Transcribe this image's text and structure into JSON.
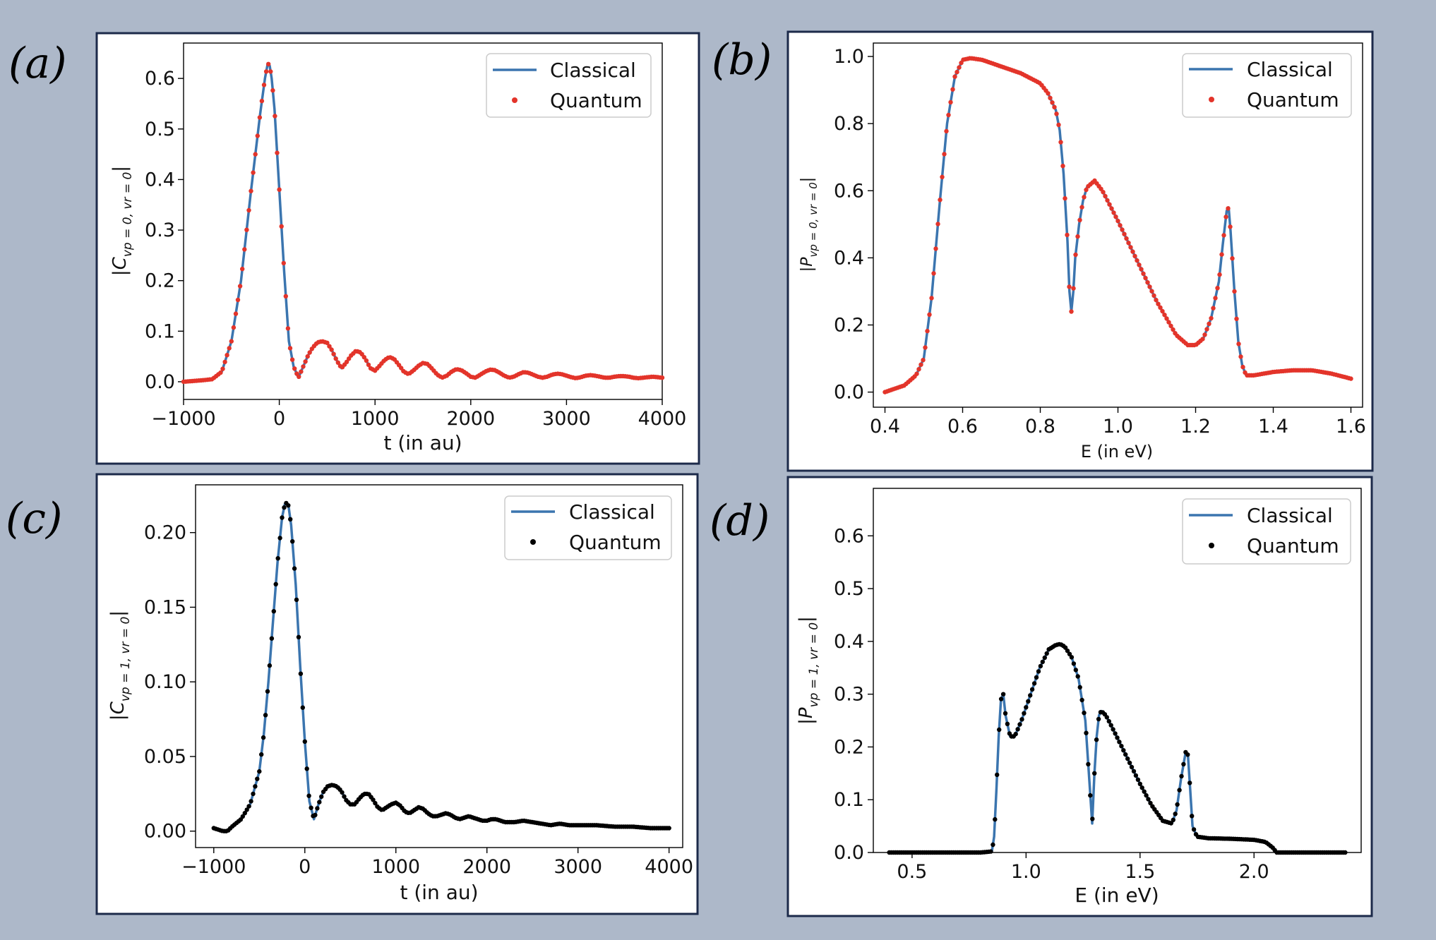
{
  "colors": {
    "background": "#adb8c9",
    "frame": "#1c2a4a",
    "classical": "#3b75af",
    "quantum_red": "#e3342a",
    "quantum_black": "#000000"
  },
  "chart_data": [
    {
      "id": "a",
      "type": "line",
      "panel_label": "(a)",
      "xlabel": "t (in au)",
      "ylabel": "|C_{v_p=0, v_r=0}|",
      "ylabel_main": "|C",
      "ylabel_sub": "vp = 0, vr = 0",
      "ylabel_end": "|",
      "xlim": [
        -1000,
        4000
      ],
      "ylim": [
        -0.035,
        0.67
      ],
      "xticks": [
        -1000,
        0,
        1000,
        2000,
        3000,
        4000
      ],
      "xtick_labels": [
        "−1000",
        "0",
        "1000",
        "2000",
        "3000",
        "4000"
      ],
      "yticks": [
        0.0,
        0.1,
        0.2,
        0.3,
        0.4,
        0.5,
        0.6
      ],
      "ytick_labels": [
        "0.0",
        "0.1",
        "0.2",
        "0.3",
        "0.4",
        "0.5",
        "0.6"
      ],
      "legend": {
        "classical": "Classical",
        "quantum": "Quantum",
        "position": "top-right"
      },
      "quantum_color": "#e3342a",
      "series": [
        {
          "name": "Classical",
          "x": [
            -1000,
            -800,
            -700,
            -600,
            -500,
            -400,
            -300,
            -200,
            -150,
            -120,
            -100,
            -80,
            -50,
            0,
            50,
            100,
            150,
            200,
            250,
            300,
            350,
            400,
            450,
            500,
            550,
            600,
            650,
            700,
            750,
            800,
            850,
            900,
            950,
            1000,
            1050,
            1100,
            1150,
            1200,
            1250,
            1300,
            1350,
            1400,
            1450,
            1500,
            1550,
            1600,
            1650,
            1700,
            1750,
            1800,
            1850,
            1900,
            1950,
            2000,
            2050,
            2100,
            2150,
            2200,
            2250,
            2300,
            2350,
            2400,
            2450,
            2500,
            2550,
            2600,
            2650,
            2700,
            2750,
            2800,
            2850,
            2900,
            2950,
            3000,
            3050,
            3100,
            3150,
            3200,
            3250,
            3300,
            3350,
            3400,
            3450,
            3500,
            3550,
            3600,
            3650,
            3700,
            3750,
            3800,
            3850,
            3900,
            3950,
            4000
          ],
          "y": [
            0.0,
            0.003,
            0.005,
            0.02,
            0.08,
            0.2,
            0.37,
            0.53,
            0.6,
            0.63,
            0.625,
            0.6,
            0.54,
            0.38,
            0.22,
            0.08,
            0.03,
            0.008,
            0.03,
            0.052,
            0.068,
            0.078,
            0.08,
            0.077,
            0.062,
            0.042,
            0.027,
            0.038,
            0.052,
            0.061,
            0.058,
            0.045,
            0.027,
            0.022,
            0.032,
            0.043,
            0.049,
            0.045,
            0.033,
            0.02,
            0.015,
            0.022,
            0.031,
            0.037,
            0.035,
            0.025,
            0.014,
            0.008,
            0.012,
            0.02,
            0.025,
            0.023,
            0.017,
            0.01,
            0.008,
            0.014,
            0.02,
            0.024,
            0.023,
            0.018,
            0.012,
            0.008,
            0.01,
            0.015,
            0.019,
            0.018,
            0.014,
            0.01,
            0.008,
            0.01,
            0.014,
            0.016,
            0.015,
            0.012,
            0.009,
            0.007,
            0.009,
            0.012,
            0.013,
            0.012,
            0.01,
            0.008,
            0.008,
            0.01,
            0.011,
            0.011,
            0.01,
            0.008,
            0.007,
            0.008,
            0.009,
            0.01,
            0.009,
            0.008
          ]
        },
        {
          "name": "Quantum"
        }
      ]
    },
    {
      "id": "b",
      "type": "line",
      "panel_label": "(b)",
      "xlabel": "E (in eV)",
      "ylabel": "|P_{v_p=0, v_r=0}|",
      "ylabel_main": "|P",
      "ylabel_sub": "vp = 0, vr = 0",
      "ylabel_end": "|",
      "xlim": [
        0.37,
        1.63
      ],
      "ylim": [
        -0.045,
        1.04
      ],
      "xticks": [
        0.4,
        0.6,
        0.8,
        1.0,
        1.2,
        1.4,
        1.6
      ],
      "xtick_labels": [
        "0.4",
        "0.6",
        "0.8",
        "1.0",
        "1.2",
        "1.4",
        "1.6"
      ],
      "yticks": [
        0.0,
        0.2,
        0.4,
        0.6,
        0.8,
        1.0
      ],
      "ytick_labels": [
        "0.0",
        "0.2",
        "0.4",
        "0.6",
        "0.8",
        "1.0"
      ],
      "legend": {
        "classical": "Classical",
        "quantum": "Quantum",
        "position": "top-right"
      },
      "quantum_color": "#e3342a",
      "series": [
        {
          "name": "Classical",
          "x": [
            0.4,
            0.45,
            0.48,
            0.5,
            0.52,
            0.54,
            0.56,
            0.58,
            0.6,
            0.62,
            0.65,
            0.7,
            0.75,
            0.8,
            0.82,
            0.84,
            0.85,
            0.86,
            0.87,
            0.875,
            0.88,
            0.885,
            0.89,
            0.9,
            0.91,
            0.92,
            0.94,
            0.96,
            1.0,
            1.05,
            1.1,
            1.15,
            1.18,
            1.2,
            1.22,
            1.24,
            1.26,
            1.27,
            1.28,
            1.285,
            1.29,
            1.3,
            1.31,
            1.32,
            1.33,
            1.35,
            1.4,
            1.45,
            1.5,
            1.55,
            1.6
          ],
          "y": [
            0.0,
            0.02,
            0.05,
            0.1,
            0.28,
            0.55,
            0.8,
            0.94,
            0.99,
            0.995,
            0.99,
            0.97,
            0.95,
            0.92,
            0.89,
            0.84,
            0.78,
            0.65,
            0.45,
            0.3,
            0.24,
            0.3,
            0.4,
            0.5,
            0.57,
            0.61,
            0.63,
            0.6,
            0.51,
            0.39,
            0.27,
            0.17,
            0.14,
            0.14,
            0.16,
            0.22,
            0.33,
            0.44,
            0.54,
            0.55,
            0.48,
            0.3,
            0.15,
            0.08,
            0.05,
            0.05,
            0.06,
            0.065,
            0.065,
            0.055,
            0.04
          ]
        },
        {
          "name": "Quantum"
        }
      ]
    },
    {
      "id": "c",
      "type": "line",
      "panel_label": "(c)",
      "xlabel": "t (in au)",
      "ylabel": "|C_{v_p=1, v_r=0}|",
      "ylabel_main": "|C",
      "ylabel_sub": "vp = 1, vr = 0",
      "ylabel_end": "|",
      "xlim": [
        -1200,
        4150
      ],
      "ylim": [
        -0.011,
        0.232
      ],
      "xticks": [
        -1000,
        0,
        1000,
        2000,
        3000,
        4000
      ],
      "xtick_labels": [
        "−1000",
        "0",
        "1000",
        "2000",
        "3000",
        "4000"
      ],
      "yticks": [
        0.0,
        0.05,
        0.1,
        0.15,
        0.2
      ],
      "ytick_labels": [
        "0.00",
        "0.05",
        "0.10",
        "0.15",
        "0.20"
      ],
      "legend": {
        "classical": "Classical",
        "quantum": "Quantum",
        "position": "top-right"
      },
      "quantum_color": "#000000",
      "series": [
        {
          "name": "Classical",
          "x": [
            -1000,
            -900,
            -850,
            -800,
            -700,
            -600,
            -500,
            -450,
            -400,
            -350,
            -300,
            -250,
            -220,
            -200,
            -180,
            -150,
            -100,
            -50,
            0,
            50,
            100,
            150,
            200,
            250,
            300,
            350,
            400,
            450,
            500,
            550,
            600,
            650,
            700,
            750,
            800,
            850,
            900,
            950,
            1000,
            1050,
            1100,
            1150,
            1200,
            1250,
            1300,
            1350,
            1400,
            1450,
            1500,
            1550,
            1600,
            1650,
            1700,
            1750,
            1800,
            1850,
            1900,
            1950,
            2000,
            2050,
            2100,
            2150,
            2200,
            2300,
            2400,
            2500,
            2600,
            2700,
            2800,
            2900,
            3000,
            3200,
            3400,
            3600,
            3800,
            4000
          ],
          "y": [
            0.002,
            0.0,
            0.0,
            0.003,
            0.008,
            0.018,
            0.04,
            0.065,
            0.1,
            0.14,
            0.18,
            0.21,
            0.219,
            0.22,
            0.218,
            0.205,
            0.165,
            0.11,
            0.06,
            0.02,
            0.008,
            0.018,
            0.026,
            0.03,
            0.031,
            0.03,
            0.027,
            0.021,
            0.018,
            0.018,
            0.022,
            0.025,
            0.025,
            0.021,
            0.016,
            0.014,
            0.016,
            0.018,
            0.019,
            0.017,
            0.013,
            0.012,
            0.014,
            0.016,
            0.015,
            0.012,
            0.01,
            0.01,
            0.011,
            0.012,
            0.011,
            0.009,
            0.008,
            0.009,
            0.01,
            0.009,
            0.008,
            0.007,
            0.007,
            0.008,
            0.008,
            0.007,
            0.006,
            0.006,
            0.007,
            0.006,
            0.005,
            0.004,
            0.005,
            0.004,
            0.004,
            0.004,
            0.003,
            0.003,
            0.002,
            0.002
          ]
        },
        {
          "name": "Quantum"
        }
      ]
    },
    {
      "id": "d",
      "type": "line",
      "panel_label": "(d)",
      "xlabel": "E (in eV)",
      "ylabel": "|P_{v_p=1, v_r=0}|",
      "ylabel_main": "|P",
      "ylabel_sub": "vp = 1, vr = 0",
      "ylabel_end": "|",
      "xlim": [
        0.33,
        2.47
      ],
      "ylim": [
        0.0,
        0.69
      ],
      "xticks": [
        0.5,
        1.0,
        1.5,
        2.0
      ],
      "xtick_labels": [
        "0.5",
        "1.0",
        "1.5",
        "2.0"
      ],
      "yticks": [
        0.0,
        0.1,
        0.2,
        0.3,
        0.4,
        0.5,
        0.6
      ],
      "ytick_labels": [
        "0.0",
        "0.1",
        "0.2",
        "0.3",
        "0.4",
        "0.5",
        "0.6"
      ],
      "legend": {
        "classical": "Classical",
        "quantum": "Quantum",
        "position": "top-right"
      },
      "quantum_color": "#000000",
      "series": [
        {
          "name": "Classical",
          "x": [
            0.4,
            0.6,
            0.8,
            0.85,
            0.86,
            0.87,
            0.88,
            0.89,
            0.9,
            0.91,
            0.93,
            0.95,
            0.98,
            1.02,
            1.06,
            1.1,
            1.13,
            1.15,
            1.17,
            1.2,
            1.23,
            1.26,
            1.28,
            1.29,
            1.3,
            1.31,
            1.32,
            1.33,
            1.35,
            1.38,
            1.42,
            1.46,
            1.5,
            1.55,
            1.6,
            1.64,
            1.66,
            1.68,
            1.7,
            1.71,
            1.72,
            1.73,
            1.75,
            1.8,
            1.9,
            2.0,
            2.05,
            2.08,
            2.1,
            2.2,
            2.4
          ],
          "y": [
            0.0,
            0.0,
            0.0,
            0.002,
            0.03,
            0.12,
            0.22,
            0.29,
            0.3,
            0.26,
            0.22,
            0.22,
            0.25,
            0.3,
            0.35,
            0.385,
            0.393,
            0.395,
            0.39,
            0.37,
            0.33,
            0.25,
            0.12,
            0.055,
            0.15,
            0.22,
            0.26,
            0.268,
            0.26,
            0.235,
            0.2,
            0.165,
            0.13,
            0.09,
            0.06,
            0.055,
            0.08,
            0.14,
            0.19,
            0.185,
            0.12,
            0.05,
            0.03,
            0.027,
            0.026,
            0.024,
            0.02,
            0.01,
            0.0,
            0.0,
            0.0
          ]
        },
        {
          "name": "Quantum"
        }
      ]
    }
  ]
}
